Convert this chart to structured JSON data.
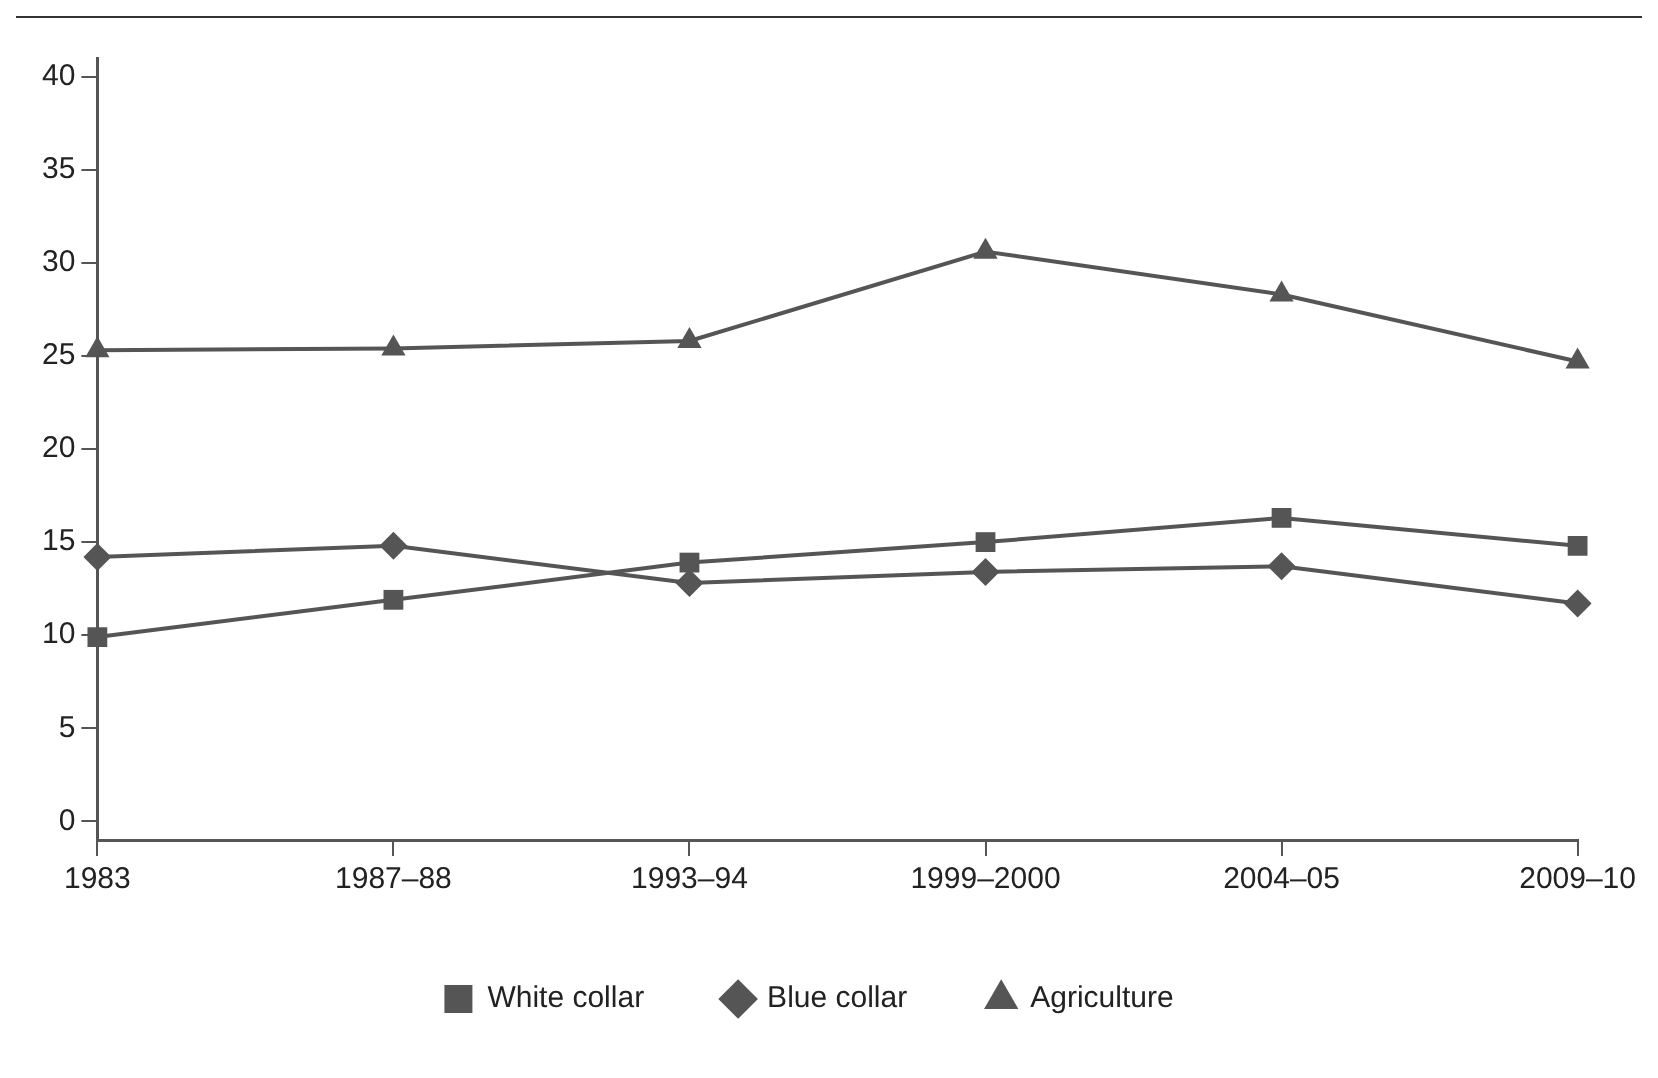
{
  "chart_data": {
    "type": "line",
    "categories": [
      "1983",
      "1987–88",
      "1993–94",
      "1999–2000",
      "2004–05",
      "2009–10"
    ],
    "series": [
      {
        "name": "White collar",
        "color": "#555555",
        "marker": "square",
        "values": [
          9.9,
          11.9,
          13.9,
          15.0,
          16.3,
          14.8
        ]
      },
      {
        "name": "Blue collar",
        "color": "#555555",
        "marker": "diamond",
        "values": [
          14.2,
          14.8,
          12.8,
          13.4,
          13.7,
          11.7
        ]
      },
      {
        "name": "Agriculture",
        "color": "#555555",
        "marker": "triangle",
        "values": [
          25.3,
          25.4,
          25.8,
          30.6,
          28.3,
          24.7
        ]
      }
    ],
    "ylim": [
      -1,
      41
    ],
    "yticks": [
      0,
      5,
      10,
      15,
      20,
      25,
      30,
      35,
      40
    ],
    "grid": false,
    "legend": "bottom",
    "line_style": "solid"
  }
}
